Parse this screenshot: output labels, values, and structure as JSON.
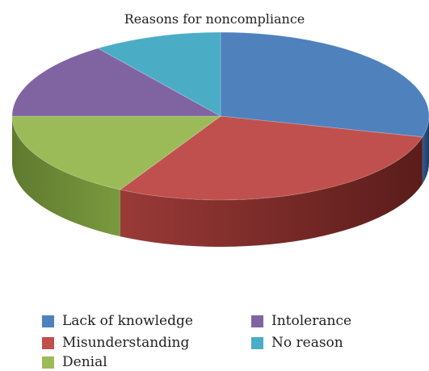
{
  "chart_data": {
    "type": "pie",
    "title": "Reasons for noncompliance",
    "style": "3d",
    "legend_position": "bottom",
    "slices": [
      {
        "label": "Lack of knowledge",
        "value": 29,
        "color": "#4F81BD"
      },
      {
        "label": "Misunderstanding",
        "value": 29,
        "color": "#C0504D"
      },
      {
        "label": "Denial",
        "value": 17,
        "color": "#9BBB59"
      },
      {
        "label": "Intolerance",
        "value": 15,
        "color": "#8064A2"
      },
      {
        "label": "No reason",
        "value": 10,
        "color": "#4BACC6"
      }
    ]
  }
}
